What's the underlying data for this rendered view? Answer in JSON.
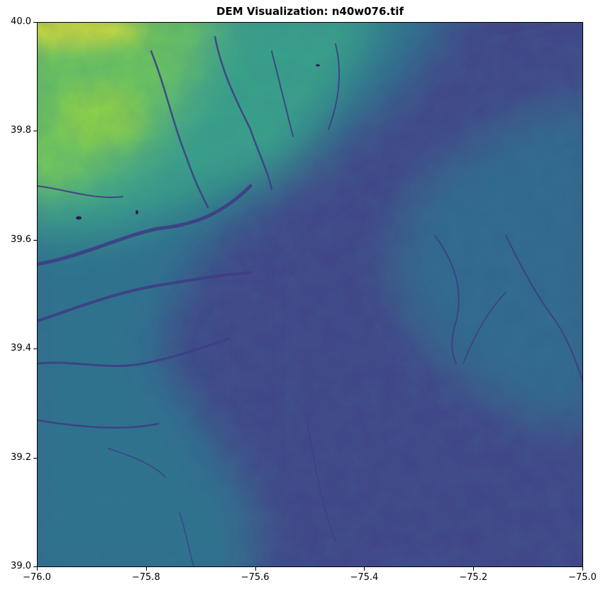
{
  "title": "DEM Visualization: n40w076.tif",
  "chart_data": {
    "type": "heatmap",
    "title": "DEM Visualization: n40w076.tif",
    "xlabel": "",
    "ylabel": "",
    "xlim": [
      -76.0,
      -75.0
    ],
    "ylim": [
      39.0,
      40.0
    ],
    "colormap": "viridis",
    "x_ticks": [
      -76.0,
      -75.8,
      -75.6,
      -75.4,
      -75.2,
      -75.0
    ],
    "x_tick_labels": [
      "−76.0",
      "−75.8",
      "−75.6",
      "−75.4",
      "−75.2",
      "−75.0"
    ],
    "y_ticks": [
      39.0,
      39.2,
      39.4,
      39.6,
      39.8,
      40.0
    ],
    "y_tick_labels": [
      "39.0",
      "39.2",
      "39.4",
      "39.6",
      "39.8",
      "40.0"
    ],
    "grid": false,
    "colors": {
      "low": "#414487",
      "mid": "#2a788e",
      "high": "#7ad151",
      "peak": "#fde725"
    }
  }
}
